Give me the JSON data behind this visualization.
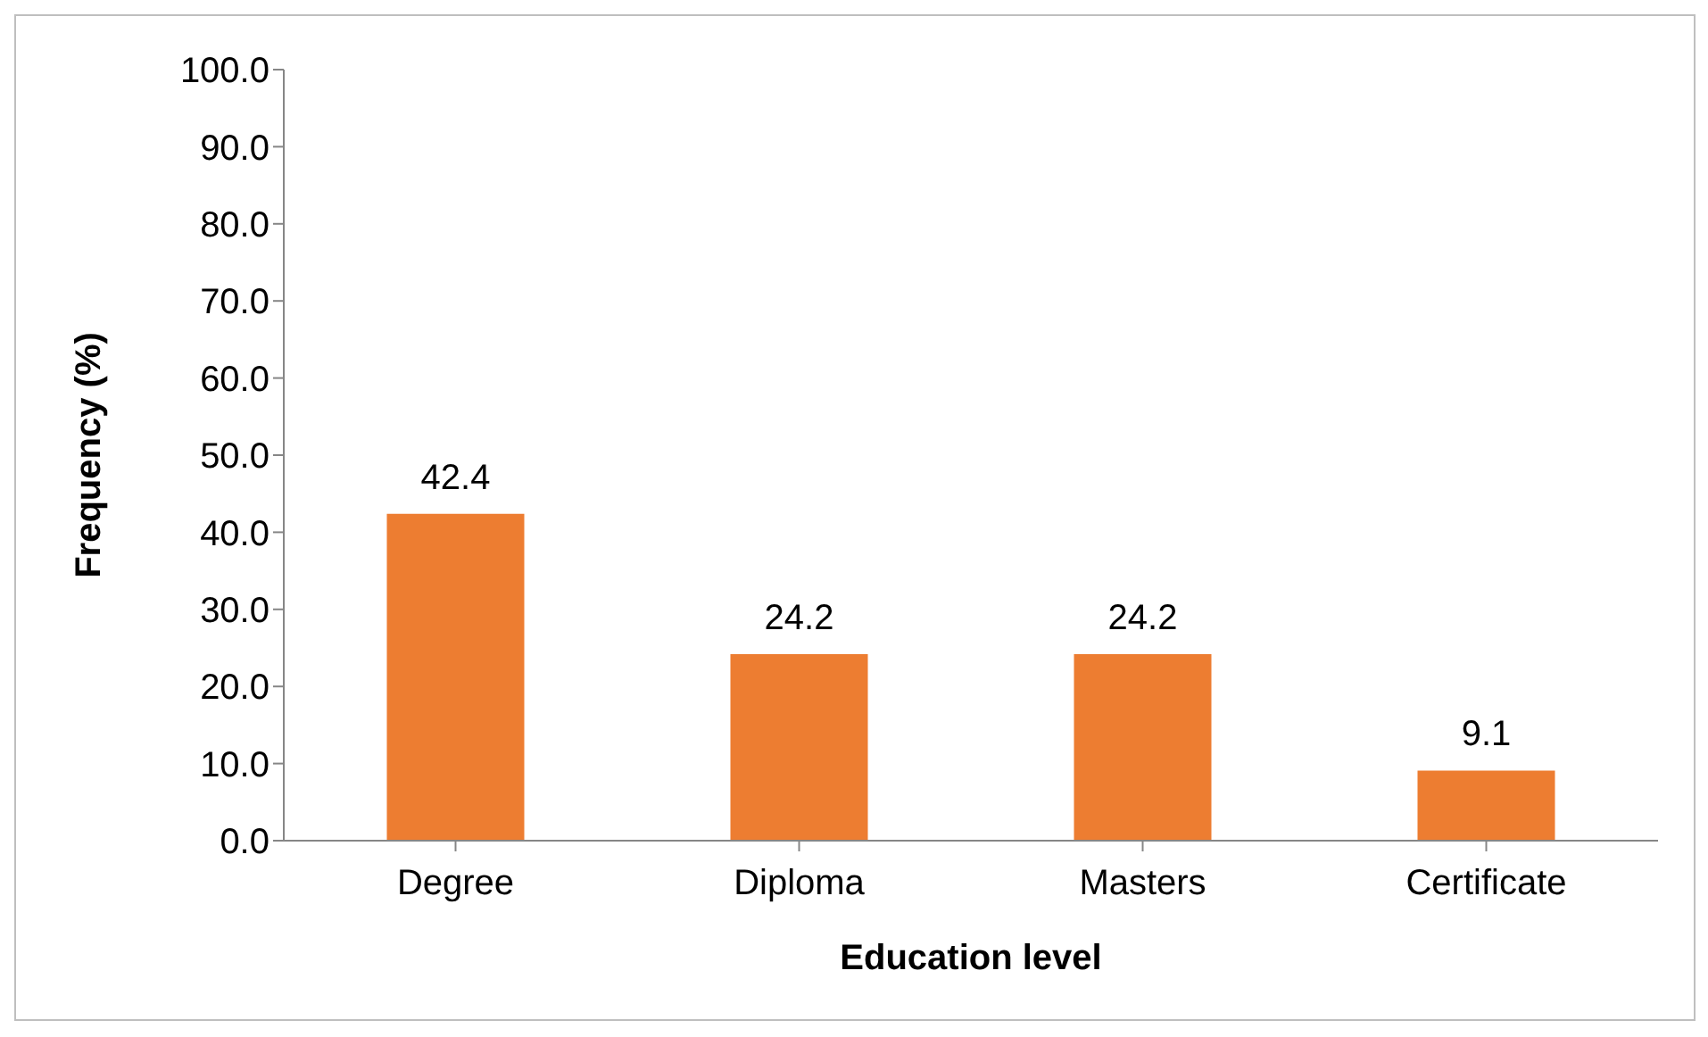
{
  "chart_data": {
    "type": "bar",
    "xlabel": "Education level",
    "ylabel": "Frequency (%)",
    "categories": [
      "Degree",
      "Diploma",
      "Masters",
      "Certificate"
    ],
    "values": [
      42.4,
      24.2,
      24.2,
      9.1
    ],
    "color": "#ed7d31",
    "ylim": [
      0,
      100
    ],
    "yticks": [
      {
        "value": 0,
        "label": "0.0"
      },
      {
        "value": 10,
        "label": "10.0"
      },
      {
        "value": 20,
        "label": "20.0"
      },
      {
        "value": 30,
        "label": "30.0"
      },
      {
        "value": 40,
        "label": "40.0"
      },
      {
        "value": 50,
        "label": "50.0"
      },
      {
        "value": 60,
        "label": "60.0"
      },
      {
        "value": 70,
        "label": "70.0"
      },
      {
        "value": 80,
        "label": "80.0"
      },
      {
        "value": 90,
        "label": "90.0"
      },
      {
        "value": 100,
        "label": "100.0"
      }
    ],
    "grid": false,
    "legend": false,
    "data_labels": true
  }
}
